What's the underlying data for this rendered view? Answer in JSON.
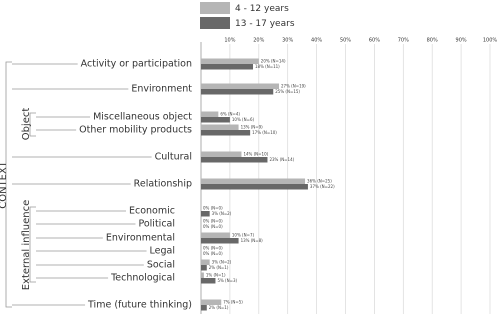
{
  "chart_data": {
    "type": "bar",
    "orientation": "horizontal",
    "categories": [
      "Activity or participation",
      "Environment",
      "Miscellaneous object",
      "Other mobility products",
      "Cultural",
      "Relationship",
      "Economic",
      "Political",
      "Environmental",
      "Legal",
      "Social",
      "Technological",
      "Time (future thinking)"
    ],
    "series": [
      {
        "name": "4 - 12 years",
        "color": "#b5b5b5",
        "values": [
          20,
          27,
          6,
          13,
          14,
          36,
          0,
          0,
          10,
          0,
          3,
          1,
          7
        ],
        "value_labels": [
          "20% (N=14)",
          "27% (N=19)",
          "6% (N=4)",
          "13% (N=9)",
          "14% (N=10)",
          "36% (N=25)",
          "0% (N=0)",
          "0% (N=0)",
          "10% (N=7)",
          "0% (N=0)",
          "3% (N=2)",
          "1% (N=1)",
          "7% (N=5)"
        ]
      },
      {
        "name": "13 - 17 years",
        "color": "#686868",
        "values": [
          18,
          25,
          10,
          17,
          23,
          37,
          3,
          0,
          13,
          0,
          2,
          5,
          2
        ],
        "value_labels": [
          "18% (N=11)",
          "25% (N=15)",
          "10% (N=6)",
          "17% (N=10)",
          "23% (N=14)",
          "37% (N=22)",
          "3% (N=2)",
          "0% (N=0)",
          "13% (N=8)",
          "0% (N=0)",
          "2% (N=1)",
          "5% (N=3)",
          "2% (N=1)"
        ]
      }
    ],
    "xlim": [
      0,
      100
    ],
    "xticks": [
      {
        "value": 10,
        "label": "10%"
      },
      {
        "value": 20,
        "label": "20%"
      },
      {
        "value": 30,
        "label": "30%"
      },
      {
        "value": 40,
        "label": "40%"
      },
      {
        "value": 50,
        "label": "50%"
      },
      {
        "value": 60,
        "label": "60%"
      },
      {
        "value": 70,
        "label": "70%"
      },
      {
        "value": 80,
        "label": "80%"
      },
      {
        "value": 90,
        "label": "90%"
      },
      {
        "value": 100,
        "label": "100%"
      }
    ],
    "grid": true,
    "group_labels": [
      "CONTEXT",
      "Object",
      "External influence"
    ]
  }
}
